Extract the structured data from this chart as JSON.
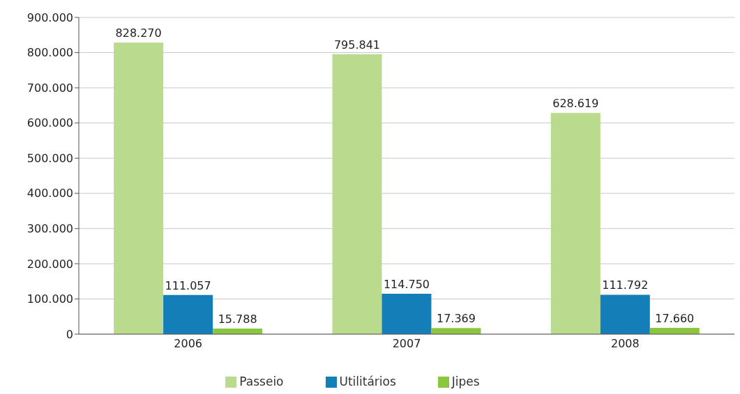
{
  "chart_data": {
    "type": "bar",
    "categories": [
      "2006",
      "2007",
      "2008"
    ],
    "series": [
      {
        "name": "Passeio",
        "color": "#badb8e",
        "values": [
          828270,
          795841,
          628619
        ],
        "value_labels": [
          "828.270",
          "795.841",
          "628.619"
        ]
      },
      {
        "name": "Utilitários",
        "color": "#137eb8",
        "values": [
          111057,
          114750,
          111792
        ],
        "value_labels": [
          "111.057",
          "114.750",
          "111.792"
        ]
      },
      {
        "name": "Jipes",
        "color": "#8cc63e",
        "values": [
          15788,
          17369,
          17660
        ],
        "value_labels": [
          "15.788",
          "17.369",
          "17.660"
        ]
      }
    ],
    "ylim": [
      0,
      900000
    ],
    "yticks": [
      {
        "value": 0,
        "label": "0"
      },
      {
        "value": 100000,
        "label": "100.000"
      },
      {
        "value": 200000,
        "label": "200.000"
      },
      {
        "value": 300000,
        "label": "300.000"
      },
      {
        "value": 400000,
        "label": "400.000"
      },
      {
        "value": 500000,
        "label": "500.000"
      },
      {
        "value": 600000,
        "label": "600.000"
      },
      {
        "value": 700000,
        "label": "700.000"
      },
      {
        "value": 800000,
        "label": "800.000"
      },
      {
        "value": 900000,
        "label": "900.000"
      }
    ],
    "grid": "y",
    "legend": "bottom"
  }
}
